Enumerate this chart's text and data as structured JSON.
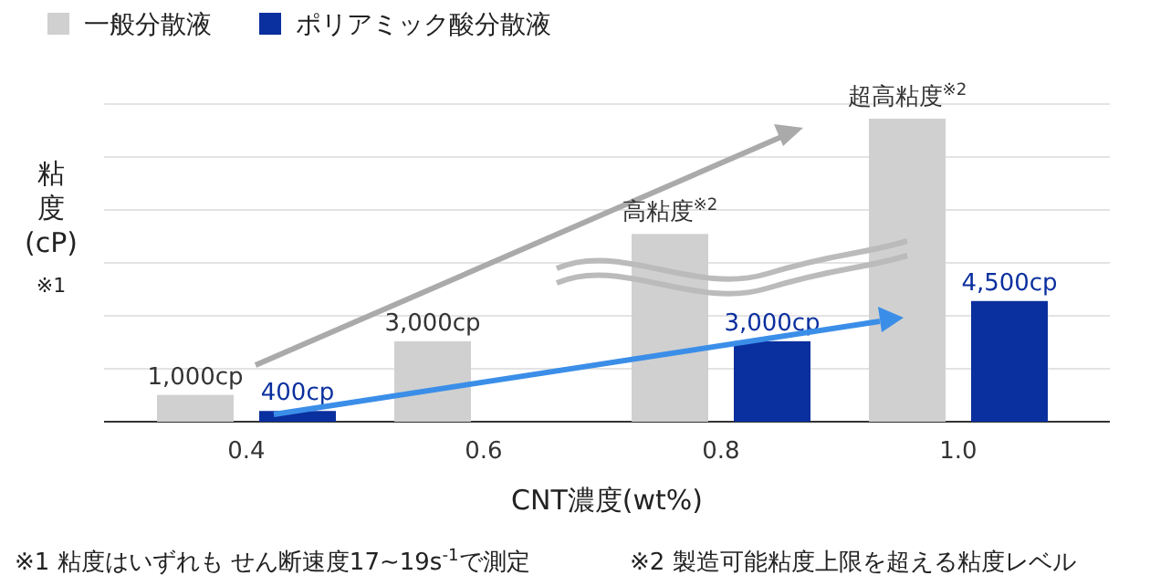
{
  "chart_data": {
    "type": "bar",
    "xlabel": "CNT濃度(wt%)",
    "ylabel": "粘度(cP)",
    "categories": [
      "0.4",
      "0.6",
      "0.8",
      "1.0"
    ],
    "series": [
      {
        "name": "一般分散液",
        "color": "#d0d0d0",
        "values": [
          1000,
          3000,
          7000,
          11300
        ],
        "value_labels": [
          "1,000cp",
          "3,000cp",
          null,
          null
        ]
      },
      {
        "name": "ポリアミック酸分散液",
        "color": "#0a2f9e",
        "values": [
          400,
          null,
          3000,
          4500
        ],
        "value_labels": [
          "400cp",
          null,
          "3,000cp",
          "4,500cp"
        ]
      }
    ],
    "annotations": [
      "高粘度$^{※2}$",
      "超高粘度$^{※2}$",
      "※1",
      "※1 粘度はいずれも せん断速度17~19s$^{-1}$で測定",
      "※2 製造可能粘度上限を超える粘度レベル"
    ],
    "grid": "y",
    "legend": "top left"
  }
}
